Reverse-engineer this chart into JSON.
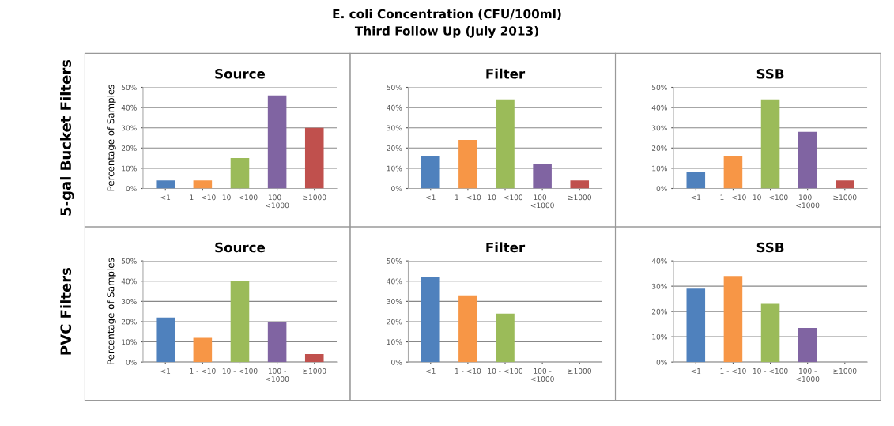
{
  "chart_data": [
    {
      "type": "other",
      "title": "E. coli Concentration (CFU/100ml)",
      "subtitle": "Third Follow Up (July 2013)"
    },
    {
      "type": "bar",
      "title": "Source",
      "ylabel": "Percentage of Samples",
      "annotations": [
        "5-gal Bucket Filters"
      ],
      "categories": [
        "<1",
        "1 - <10",
        "10 - <100",
        "100 - <1000",
        "≥1000"
      ],
      "values": [
        4,
        4,
        15,
        46,
        30
      ],
      "colors": [
        "#4f81bd",
        "#f79646",
        "#9bbb59",
        "#8064a2",
        "#c0504d"
      ],
      "ylim": [
        0,
        50
      ],
      "yticks": [
        {
          "value": 0,
          "label": "0%"
        },
        {
          "value": 10,
          "label": "10%"
        },
        {
          "value": 20,
          "label": "20%"
        },
        {
          "value": 30,
          "label": "30%"
        },
        {
          "value": 40,
          "label": "40%"
        },
        {
          "value": 50,
          "label": "50%"
        }
      ],
      "grid": "y"
    },
    {
      "type": "bar",
      "title": "Filter",
      "categories": [
        "<1",
        "1 - <10",
        "10 - <100",
        "100 - <1000",
        "≥1000"
      ],
      "values": [
        16,
        24,
        44,
        12,
        4
      ],
      "colors": [
        "#4f81bd",
        "#f79646",
        "#9bbb59",
        "#8064a2",
        "#c0504d"
      ],
      "ylim": [
        0,
        50
      ],
      "yticks": [
        {
          "value": 0,
          "label": "0%"
        },
        {
          "value": 10,
          "label": "10%"
        },
        {
          "value": 20,
          "label": "20%"
        },
        {
          "value": 30,
          "label": "30%"
        },
        {
          "value": 40,
          "label": "40%"
        },
        {
          "value": 50,
          "label": "50%"
        }
      ],
      "grid": "y"
    },
    {
      "type": "bar",
      "title": "SSB",
      "categories": [
        "<1",
        "1 - <10",
        "10 - <100",
        "100 - <1000",
        "≥1000"
      ],
      "values": [
        8,
        16,
        44,
        28,
        4
      ],
      "colors": [
        "#4f81bd",
        "#f79646",
        "#9bbb59",
        "#8064a2",
        "#c0504d"
      ],
      "ylim": [
        0,
        50
      ],
      "yticks": [
        {
          "value": 0,
          "label": "0%"
        },
        {
          "value": 10,
          "label": "10%"
        },
        {
          "value": 20,
          "label": "20%"
        },
        {
          "value": 30,
          "label": "30%"
        },
        {
          "value": 40,
          "label": "40%"
        },
        {
          "value": 50,
          "label": "50%"
        }
      ],
      "grid": "y"
    },
    {
      "type": "bar",
      "title": "Source",
      "ylabel": "Percentage of Samples",
      "annotations": [
        "PVC Filters"
      ],
      "categories": [
        "<1",
        "1 - <10",
        "10 - <100",
        "100 - <1000",
        "≥1000"
      ],
      "values": [
        22,
        12,
        40,
        20,
        4
      ],
      "colors": [
        "#4f81bd",
        "#f79646",
        "#9bbb59",
        "#8064a2",
        "#c0504d"
      ],
      "ylim": [
        0,
        50
      ],
      "yticks": [
        {
          "value": 0,
          "label": "0%"
        },
        {
          "value": 10,
          "label": "10%"
        },
        {
          "value": 20,
          "label": "20%"
        },
        {
          "value": 30,
          "label": "30%"
        },
        {
          "value": 40,
          "label": "40%"
        },
        {
          "value": 50,
          "label": "50%"
        }
      ],
      "grid": "y"
    },
    {
      "type": "bar",
      "title": "Filter",
      "categories": [
        "<1",
        "1 - <10",
        "10 - <100",
        "100 - <1000",
        "≥1000"
      ],
      "values": [
        42,
        33,
        24,
        0,
        0
      ],
      "colors": [
        "#4f81bd",
        "#f79646",
        "#9bbb59",
        "#8064a2",
        "#c0504d"
      ],
      "ylim": [
        0,
        50
      ],
      "yticks": [
        {
          "value": 0,
          "label": "0%"
        },
        {
          "value": 10,
          "label": "10%"
        },
        {
          "value": 20,
          "label": "20%"
        },
        {
          "value": 30,
          "label": "30%"
        },
        {
          "value": 40,
          "label": "40%"
        },
        {
          "value": 50,
          "label": "50%"
        }
      ],
      "grid": "y"
    },
    {
      "type": "bar",
      "title": "SSB",
      "categories": [
        "<1",
        "1 - <10",
        "10 - <100",
        "100 - <1000",
        "≥1000"
      ],
      "values": [
        29,
        34,
        23,
        13.5,
        0
      ],
      "colors": [
        "#4f81bd",
        "#f79646",
        "#9bbb59",
        "#8064a2",
        "#c0504d"
      ],
      "ylim": [
        0,
        40
      ],
      "yticks": [
        {
          "value": 0,
          "label": "0%"
        },
        {
          "value": 10,
          "label": "10%"
        },
        {
          "value": 20,
          "label": "20%"
        },
        {
          "value": 30,
          "label": "30%"
        },
        {
          "value": 40,
          "label": "40%"
        }
      ],
      "grid": "y"
    }
  ]
}
